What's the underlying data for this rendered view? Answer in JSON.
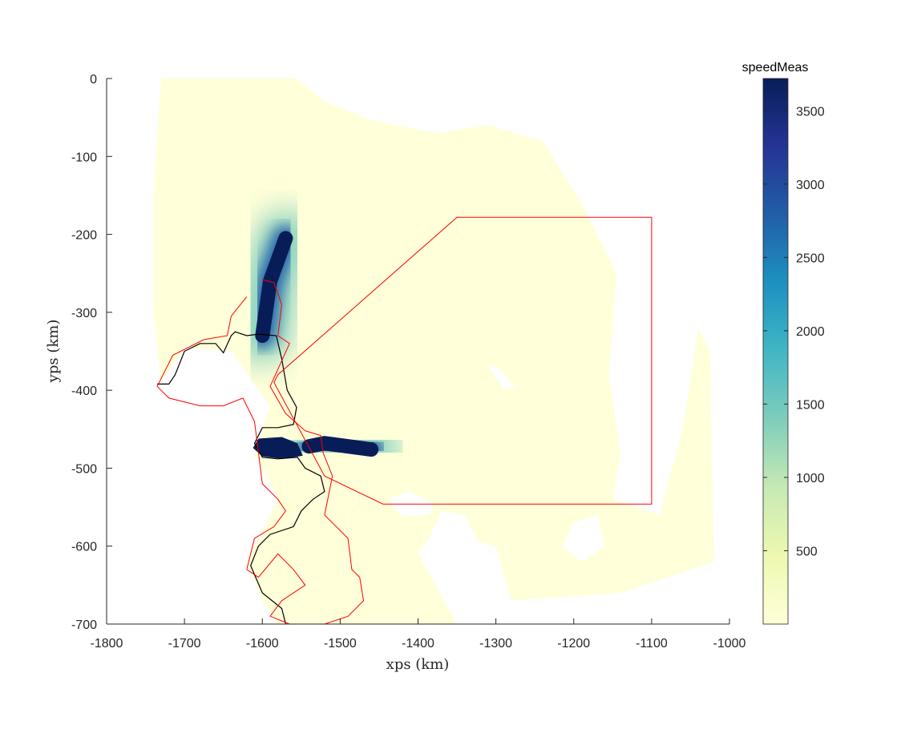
{
  "chart_data": {
    "type": "heatmap",
    "xlabel": "xps (km)",
    "ylabel": "yps (km)",
    "xlim": [
      -1800,
      -1000
    ],
    "ylim": [
      -700,
      0
    ],
    "xticks": [
      -1800,
      -1700,
      -1600,
      -1500,
      -1400,
      -1300,
      -1200,
      -1100,
      -1000
    ],
    "yticks": [
      0,
      -100,
      -200,
      -300,
      -400,
      -500,
      -600,
      -700
    ],
    "xtick_labels": [
      "-1800",
      "-1700",
      "-1600",
      "-1500",
      "-1400",
      "-1300",
      "-1200",
      "-1100",
      "-1000"
    ],
    "ytick_labels": [
      "0",
      "-100",
      "-200",
      "-300",
      "-400",
      "-500",
      "-600",
      "-700"
    ],
    "grid": false,
    "colorbar": {
      "title": "speedMeas",
      "range": [
        0,
        3720
      ],
      "ticks": [
        500,
        1000,
        1500,
        2000,
        2500,
        3000,
        3500
      ],
      "tick_labels": [
        "500",
        "1000",
        "1500",
        "2000",
        "2500",
        "3000",
        "3500"
      ],
      "colormap": [
        "#ffffd9",
        "#edf8b1",
        "#c7e9b4",
        "#7fcdbb",
        "#41b6c4",
        "#1d91c0",
        "#225ea8",
        "#253494",
        "#081d58"
      ]
    },
    "data_region_outline": [
      [
        -1730,
        0
      ],
      [
        -1555,
        0
      ],
      [
        -1520,
        -30
      ],
      [
        -1455,
        -55
      ],
      [
        -1375,
        -70
      ],
      [
        -1310,
        -60
      ],
      [
        -1240,
        -80
      ],
      [
        -1190,
        -160
      ],
      [
        -1145,
        -250
      ],
      [
        -1155,
        -380
      ],
      [
        -1140,
        -480
      ],
      [
        -1150,
        -540
      ],
      [
        -1090,
        -560
      ],
      [
        -1060,
        -450
      ],
      [
        -1040,
        -320
      ],
      [
        -1025,
        -350
      ],
      [
        -1020,
        -620
      ],
      [
        -1140,
        -660
      ],
      [
        -1280,
        -670
      ],
      [
        -1300,
        -600
      ],
      [
        -1380,
        -580
      ],
      [
        -1400,
        -610
      ],
      [
        -1350,
        -700
      ],
      [
        -1510,
        -700
      ],
      [
        -1580,
        -700
      ],
      [
        -1600,
        -670
      ],
      [
        -1620,
        -620
      ],
      [
        -1580,
        -540
      ],
      [
        -1610,
        -480
      ],
      [
        -1590,
        -420
      ],
      [
        -1640,
        -350
      ],
      [
        -1700,
        -345
      ],
      [
        -1730,
        -390
      ],
      [
        -1740,
        -300
      ],
      [
        -1740,
        -150
      ]
    ],
    "fast_flow_features": [
      {
        "name": "upper_glacier_trunk",
        "points": [
          [
            -1600,
            -330
          ],
          [
            -1590,
            -260
          ],
          [
            -1570,
            -205
          ]
        ],
        "speed": 3600
      },
      {
        "name": "lower_ice_shelf_trunk",
        "points": [
          [
            -1540,
            -472
          ],
          [
            -1520,
            -468
          ],
          [
            -1460,
            -476
          ]
        ],
        "speed": 3500
      }
    ],
    "model_boundary_polygon": {
      "color": "#ff0000",
      "points": [
        [
          -1350,
          -178
        ],
        [
          -1100,
          -178
        ],
        [
          -1100,
          -546
        ],
        [
          -1445,
          -546
        ],
        [
          -1520,
          -510
        ],
        [
          -1585,
          -390
        ],
        [
          -1580,
          -380
        ]
      ]
    },
    "grounding_line": {
      "color": "#ff0000",
      "points": [
        [
          -1600,
          -258
        ],
        [
          -1585,
          -262
        ],
        [
          -1575,
          -290
        ],
        [
          -1580,
          -330
        ],
        [
          -1565,
          -340
        ],
        [
          -1590,
          -395
        ],
        [
          -1570,
          -430
        ],
        [
          -1545,
          -452
        ],
        [
          -1525,
          -458
        ],
        [
          -1522,
          -480
        ],
        [
          -1510,
          -510
        ],
        [
          -1520,
          -560
        ],
        [
          -1490,
          -590
        ],
        [
          -1485,
          -630
        ],
        [
          -1475,
          -640
        ],
        [
          -1470,
          -670
        ],
        [
          -1490,
          -690
        ],
        [
          -1520,
          -700
        ],
        [
          -1565,
          -700
        ],
        [
          -1590,
          -690
        ],
        [
          -1575,
          -670
        ],
        [
          -1545,
          -650
        ],
        [
          -1560,
          -630
        ],
        [
          -1580,
          -610
        ],
        [
          -1605,
          -640
        ],
        [
          -1620,
          -630
        ],
        [
          -1610,
          -590
        ],
        [
          -1585,
          -575
        ],
        [
          -1570,
          -555
        ],
        [
          -1580,
          -540
        ],
        [
          -1600,
          -520
        ],
        [
          -1610,
          -440
        ],
        [
          -1625,
          -410
        ],
        [
          -1650,
          -420
        ],
        [
          -1680,
          -420
        ],
        [
          -1720,
          -410
        ],
        [
          -1735,
          -395
        ],
        [
          -1715,
          -355
        ],
        [
          -1675,
          -335
        ],
        [
          -1645,
          -330
        ],
        [
          -1640,
          -305
        ],
        [
          -1620,
          -280
        ]
      ]
    },
    "ice_front": {
      "color": "#000000",
      "points": [
        [
          -1735,
          -392
        ],
        [
          -1720,
          -392
        ],
        [
          -1712,
          -380
        ],
        [
          -1700,
          -350
        ],
        [
          -1680,
          -340
        ],
        [
          -1660,
          -340
        ],
        [
          -1650,
          -352
        ],
        [
          -1640,
          -330
        ],
        [
          -1635,
          -325
        ],
        [
          -1620,
          -330
        ],
        [
          -1605,
          -328
        ],
        [
          -1582,
          -330
        ],
        [
          -1575,
          -360
        ],
        [
          -1568,
          -400
        ],
        [
          -1556,
          -422
        ],
        [
          -1560,
          -444
        ],
        [
          -1580,
          -448
        ],
        [
          -1600,
          -448
        ],
        [
          -1610,
          -468
        ],
        [
          -1600,
          -486
        ],
        [
          -1580,
          -488
        ],
        [
          -1555,
          -486
        ],
        [
          -1545,
          -500
        ],
        [
          -1525,
          -510
        ],
        [
          -1520,
          -530
        ],
        [
          -1535,
          -540
        ],
        [
          -1550,
          -555
        ],
        [
          -1560,
          -575
        ],
        [
          -1590,
          -585
        ],
        [
          -1605,
          -600
        ],
        [
          -1615,
          -625
        ],
        [
          -1600,
          -660
        ],
        [
          -1575,
          -680
        ],
        [
          -1570,
          -700
        ]
      ]
    },
    "lower_shelf_patch": [
      [
        -1605,
        -462
      ],
      [
        -1575,
        -460
      ],
      [
        -1555,
        -468
      ],
      [
        -1548,
        -484
      ],
      [
        -1575,
        -488
      ],
      [
        -1600,
        -485
      ],
      [
        -1612,
        -474
      ]
    ],
    "data_gaps": [
      [
        [
          -1440,
          -540
        ],
        [
          -1410,
          -530
        ],
        [
          -1380,
          -545
        ],
        [
          -1385,
          -560
        ],
        [
          -1420,
          -562
        ]
      ],
      [
        [
          -1310,
          -370
        ],
        [
          -1300,
          -368
        ],
        [
          -1275,
          -395
        ],
        [
          -1290,
          -398
        ]
      ],
      [
        [
          -1200,
          -570
        ],
        [
          -1170,
          -560
        ],
        [
          -1160,
          -600
        ],
        [
          -1190,
          -620
        ],
        [
          -1215,
          -600
        ]
      ],
      [
        [
          -1370,
          -555
        ],
        [
          -1340,
          -560
        ],
        [
          -1320,
          -600
        ],
        [
          -1350,
          -620
        ],
        [
          -1390,
          -600
        ]
      ]
    ]
  }
}
